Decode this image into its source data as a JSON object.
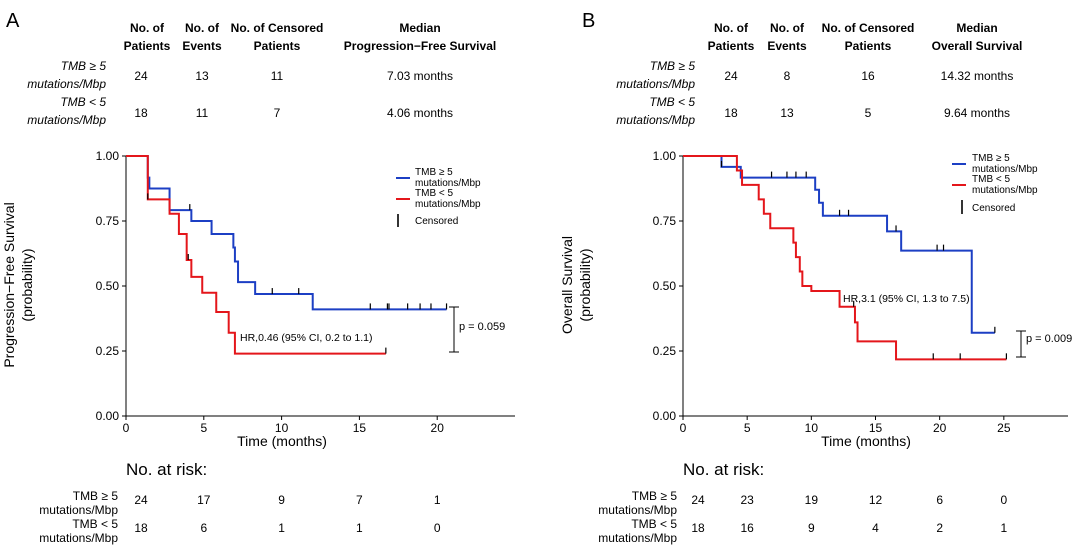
{
  "figure": {
    "panels": [
      {
        "letter": "A",
        "summary_table": {
          "headers": [
            [
              "No. of",
              "Patients"
            ],
            [
              "No. of",
              "Events"
            ],
            [
              "No. of Censored",
              "Patients"
            ],
            [
              "Median",
              "Progression−Free Survival"
            ]
          ],
          "rows": [
            {
              "label": [
                "TMB ≥ 5",
                "mutations/Mbp"
              ],
              "cells": [
                "24",
                "13",
                "11",
                "7.03 months"
              ]
            },
            {
              "label": [
                "TMB < 5",
                "mutations/Mbp"
              ],
              "cells": [
                "18",
                "11",
                "7",
                "4.06 months"
              ]
            }
          ]
        },
        "annotations": {
          "hr": "HR,0.46 (95% CI, 0.2 to 1.1)",
          "p": "p = 0.059"
        },
        "risk_table": {
          "title": "No. at risk:",
          "rows": [
            {
              "label": [
                "TMB ≥ 5",
                "mutations/Mbp"
              ],
              "values": [
                "24",
                "17",
                "9",
                "7",
                "1"
              ]
            },
            {
              "label": [
                "TMB < 5",
                "mutations/Mbp"
              ],
              "values": [
                "18",
                "6",
                "1",
                "1",
                "0"
              ]
            }
          ]
        }
      },
      {
        "letter": "B",
        "summary_table": {
          "headers": [
            [
              "No. of",
              "Patients"
            ],
            [
              "No. of",
              "Events"
            ],
            [
              "No. of Censored",
              "Patients"
            ],
            [
              "Median",
              "Overall Survival"
            ]
          ],
          "rows": [
            {
              "label": [
                "TMB ≥ 5",
                "mutations/Mbp"
              ],
              "cells": [
                "24",
                "8",
                "16",
                "14.32 months"
              ]
            },
            {
              "label": [
                "TMB < 5",
                "mutations/Mbp"
              ],
              "cells": [
                "18",
                "13",
                "5",
                "9.64 months"
              ]
            }
          ]
        },
        "annotations": {
          "hr": "HR,3.1 (95% CI, 1.3 to 7.5)",
          "p": "p = 0.009"
        },
        "risk_table": {
          "title": "No. at risk:",
          "rows": [
            {
              "label": [
                "TMB ≥ 5",
                "mutations/Mbp"
              ],
              "values": [
                "24",
                "23",
                "19",
                "12",
                "6",
                "0"
              ]
            },
            {
              "label": [
                "TMB < 5",
                "mutations/Mbp"
              ],
              "values": [
                "18",
                "16",
                "9",
                "4",
                "2",
                "1"
              ]
            }
          ]
        }
      }
    ]
  },
  "chart_data": [
    {
      "type": "line",
      "title": "",
      "xlabel": "Time (months)",
      "ylabel": [
        "Progression−Free Survival",
        "(probability)"
      ],
      "xlim": [
        0,
        25
      ],
      "ylim": [
        0,
        1
      ],
      "xticks": [
        0,
        5,
        10,
        15,
        20
      ],
      "yticks": [
        0,
        0.25,
        0.5,
        0.75,
        1.0
      ],
      "ytick_labels": [
        "0.00",
        "0.25",
        "0.50",
        "0.75",
        "1.00"
      ],
      "legend": {
        "position": "top-right",
        "entries": [
          [
            "TMB ≥ 5",
            "mutations/Mbp"
          ],
          [
            "TMB < 5",
            "mutations/Mbp"
          ]
        ],
        "censor_label": "Censored"
      },
      "series": [
        {
          "name": "TMB ≥ 5 mutations/Mbp",
          "color": "#1c3fc4",
          "steps": [
            [
              0,
              1.0
            ],
            [
              1.4,
              0.917
            ],
            [
              1.5,
              0.875
            ],
            [
              2.8,
              0.792
            ],
            [
              4.2,
              0.75
            ],
            [
              5.5,
              0.7
            ],
            [
              6.9,
              0.648
            ],
            [
              7.0,
              0.594
            ],
            [
              7.2,
              0.515
            ],
            [
              8.3,
              0.469
            ],
            [
              12.0,
              0.41
            ],
            [
              20.6,
              0.41
            ]
          ],
          "censored": [
            [
              4.1,
              0.792
            ],
            [
              9.4,
              0.469
            ],
            [
              11.1,
              0.469
            ],
            [
              15.7,
              0.41
            ],
            [
              16.8,
              0.41
            ],
            [
              16.9,
              0.41
            ],
            [
              18.1,
              0.41
            ],
            [
              18.9,
              0.41
            ],
            [
              19.6,
              0.41
            ],
            [
              20.6,
              0.41
            ]
          ]
        },
        {
          "name": "TMB < 5 mutations/Mbp",
          "color": "#e4161b",
          "steps": [
            [
              0,
              1.0
            ],
            [
              1.4,
              0.833
            ],
            [
              2.8,
              0.778
            ],
            [
              3.4,
              0.7
            ],
            [
              3.9,
              0.6
            ],
            [
              4.2,
              0.535
            ],
            [
              4.9,
              0.474
            ],
            [
              5.8,
              0.4
            ],
            [
              6.6,
              0.32
            ],
            [
              7.0,
              0.24
            ],
            [
              16.7,
              0.24
            ]
          ],
          "censored": [
            [
              1.4,
              0.833
            ],
            [
              4.0,
              0.6
            ],
            [
              16.7,
              0.24
            ]
          ]
        }
      ]
    },
    {
      "type": "line",
      "title": "",
      "xlabel": "Time (months)",
      "ylabel": [
        "Overall Survival",
        "(probability)"
      ],
      "xlim": [
        0,
        30
      ],
      "ylim": [
        0,
        1
      ],
      "xticks": [
        0,
        5,
        10,
        15,
        20,
        25
      ],
      "yticks": [
        0,
        0.25,
        0.5,
        0.75,
        1.0
      ],
      "ytick_labels": [
        "0.00",
        "0.25",
        "0.50",
        "0.75",
        "1.00"
      ],
      "legend": {
        "position": "top-right",
        "entries": [
          [
            "TMB ≥ 5",
            "mutations/Mbp"
          ],
          [
            "TMB < 5",
            "mutations/Mbp"
          ]
        ],
        "censor_label": "Censored"
      },
      "series": [
        {
          "name": "TMB ≥ 5 mutations/Mbp",
          "color": "#1c3fc4",
          "steps": [
            [
              0,
              1.0
            ],
            [
              3.0,
              0.958
            ],
            [
              4.5,
              0.917
            ],
            [
              10.3,
              0.87
            ],
            [
              10.6,
              0.82
            ],
            [
              10.9,
              0.77
            ],
            [
              15.9,
              0.71
            ],
            [
              17.0,
              0.636
            ],
            [
              22.5,
              0.32
            ],
            [
              24.3,
              0.32
            ]
          ],
          "censored": [
            [
              3.0,
              0.958
            ],
            [
              6.9,
              0.917
            ],
            [
              8.1,
              0.917
            ],
            [
              8.8,
              0.917
            ],
            [
              9.6,
              0.917
            ],
            [
              12.2,
              0.77
            ],
            [
              12.9,
              0.77
            ],
            [
              16.6,
              0.71
            ],
            [
              19.8,
              0.636
            ],
            [
              20.3,
              0.636
            ],
            [
              24.3,
              0.32
            ]
          ]
        },
        {
          "name": "TMB < 5 mutations/Mbp",
          "color": "#e4161b",
          "steps": [
            [
              0,
              1.0
            ],
            [
              4.2,
              0.944
            ],
            [
              4.6,
              0.889
            ],
            [
              5.9,
              0.833
            ],
            [
              6.3,
              0.778
            ],
            [
              6.8,
              0.722
            ],
            [
              8.6,
              0.667
            ],
            [
              8.8,
              0.611
            ],
            [
              9.1,
              0.556
            ],
            [
              9.3,
              0.5
            ],
            [
              10.0,
              0.481
            ],
            [
              12.2,
              0.42
            ],
            [
              13.4,
              0.36
            ],
            [
              13.6,
              0.287
            ],
            [
              16.6,
              0.218
            ],
            [
              25.2,
              0.218
            ]
          ],
          "censored": [
            [
              13.3,
              0.42
            ],
            [
              19.5,
              0.218
            ],
            [
              21.6,
              0.218
            ],
            [
              25.2,
              0.218
            ]
          ]
        }
      ]
    }
  ]
}
